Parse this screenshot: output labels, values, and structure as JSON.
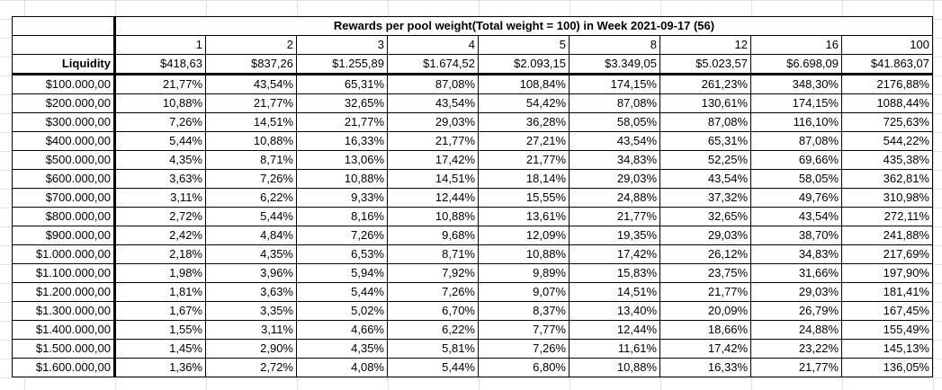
{
  "title": "Rewards per pool weight(Total weight = 100) in Week 2021-09-17 (56)",
  "header": {
    "weights": [
      "1",
      "2",
      "3",
      "4",
      "5",
      "8",
      "12",
      "16",
      "100"
    ],
    "liquidity_label": "Liquidity",
    "rewards": [
      "$418,63",
      "$837,26",
      "$1.255,89",
      "$1.674,52",
      "$2.093,15",
      "$3.349,05",
      "$5.023,57",
      "$6.698,09",
      "$41.863,07"
    ]
  },
  "rows": [
    {
      "liquidity": "$100.000,00",
      "values": [
        "21,77%",
        "43,54%",
        "65,31%",
        "87,08%",
        "108,84%",
        "174,15%",
        "261,23%",
        "348,30%",
        "2176,88%"
      ]
    },
    {
      "liquidity": "$200.000,00",
      "values": [
        "10,88%",
        "21,77%",
        "32,65%",
        "43,54%",
        "54,42%",
        "87,08%",
        "130,61%",
        "174,15%",
        "1088,44%"
      ]
    },
    {
      "liquidity": "$300.000,00",
      "values": [
        "7,26%",
        "14,51%",
        "21,77%",
        "29,03%",
        "36,28%",
        "58,05%",
        "87,08%",
        "116,10%",
        "725,63%"
      ]
    },
    {
      "liquidity": "$400.000,00",
      "values": [
        "5,44%",
        "10,88%",
        "16,33%",
        "21,77%",
        "27,21%",
        "43,54%",
        "65,31%",
        "87,08%",
        "544,22%"
      ]
    },
    {
      "liquidity": "$500.000,00",
      "values": [
        "4,35%",
        "8,71%",
        "13,06%",
        "17,42%",
        "21,77%",
        "34,83%",
        "52,25%",
        "69,66%",
        "435,38%"
      ]
    },
    {
      "liquidity": "$600.000,00",
      "values": [
        "3,63%",
        "7,26%",
        "10,88%",
        "14,51%",
        "18,14%",
        "29,03%",
        "43,54%",
        "58,05%",
        "362,81%"
      ]
    },
    {
      "liquidity": "$700.000,00",
      "values": [
        "3,11%",
        "6,22%",
        "9,33%",
        "12,44%",
        "15,55%",
        "24,88%",
        "37,32%",
        "49,76%",
        "310,98%"
      ]
    },
    {
      "liquidity": "$800.000,00",
      "values": [
        "2,72%",
        "5,44%",
        "8,16%",
        "10,88%",
        "13,61%",
        "21,77%",
        "32,65%",
        "43,54%",
        "272,11%"
      ]
    },
    {
      "liquidity": "$900.000,00",
      "values": [
        "2,42%",
        "4,84%",
        "7,26%",
        "9,68%",
        "12,09%",
        "19,35%",
        "29,03%",
        "38,70%",
        "241,88%"
      ]
    },
    {
      "liquidity": "$1.000.000,00",
      "values": [
        "2,18%",
        "4,35%",
        "6,53%",
        "8,71%",
        "10,88%",
        "17,42%",
        "26,12%",
        "34,83%",
        "217,69%"
      ]
    },
    {
      "liquidity": "$1.100.000,00",
      "values": [
        "1,98%",
        "3,96%",
        "5,94%",
        "7,92%",
        "9,89%",
        "15,83%",
        "23,75%",
        "31,66%",
        "197,90%"
      ]
    },
    {
      "liquidity": "$1.200.000,00",
      "values": [
        "1,81%",
        "3,63%",
        "5,44%",
        "7,26%",
        "9,07%",
        "14,51%",
        "21,77%",
        "29,03%",
        "181,41%"
      ]
    },
    {
      "liquidity": "$1.300.000,00",
      "values": [
        "1,67%",
        "3,35%",
        "5,02%",
        "6,70%",
        "8,37%",
        "13,40%",
        "20,09%",
        "26,79%",
        "167,45%"
      ]
    },
    {
      "liquidity": "$1.400.000,00",
      "values": [
        "1,55%",
        "3,11%",
        "4,66%",
        "6,22%",
        "7,77%",
        "12,44%",
        "18,66%",
        "24,88%",
        "155,49%"
      ]
    },
    {
      "liquidity": "$1.500.000,00",
      "values": [
        "1,45%",
        "2,90%",
        "4,35%",
        "5,81%",
        "7,26%",
        "11,61%",
        "17,42%",
        "23,22%",
        "145,13%"
      ]
    },
    {
      "liquidity": "$1.600.000,00",
      "values": [
        "1,36%",
        "2,72%",
        "4,08%",
        "5,44%",
        "6,80%",
        "10,88%",
        "16,33%",
        "21,77%",
        "136,05%"
      ]
    }
  ]
}
